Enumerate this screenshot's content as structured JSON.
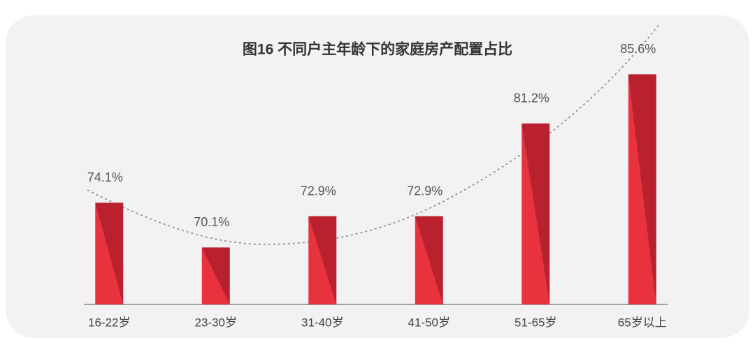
{
  "chart_data": {
    "type": "bar",
    "title": "图16 不同户主年龄下的家庭房产配置占比",
    "categories": [
      "16-22岁",
      "23-30岁",
      "31-40岁",
      "41-50岁",
      "51-65岁",
      "65岁以上"
    ],
    "values": [
      74.1,
      70.1,
      72.9,
      72.9,
      81.2,
      85.6
    ],
    "value_labels": [
      "74.1%",
      "70.1%",
      "72.9%",
      "72.9%",
      "81.2%",
      "85.6%"
    ],
    "color": "#e8323e",
    "shade_color": "#b8212d",
    "ylim": [
      65,
      87
    ]
  }
}
